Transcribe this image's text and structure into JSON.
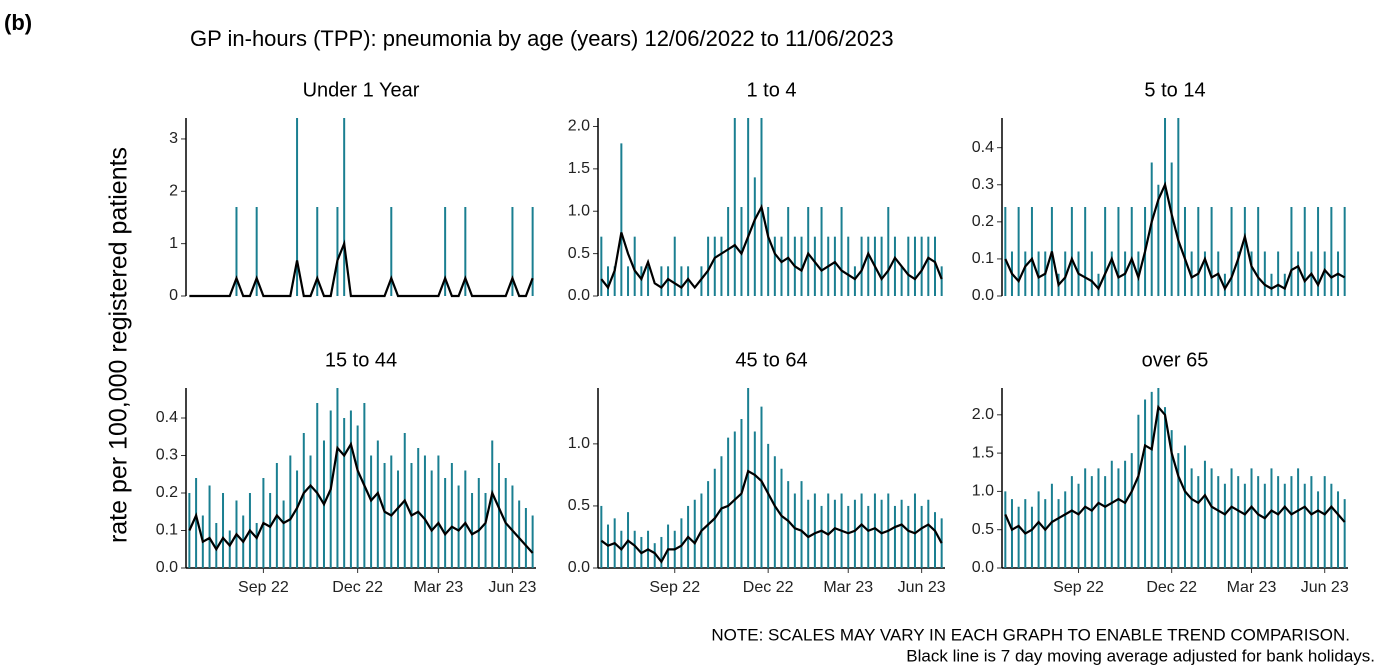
{
  "panel_label": "(b)",
  "title": "GP in-hours (TPP): pneumonia by age (years) 12/06/2022 to 11/06/2023",
  "ylabel": "rate per 100,000 registered patients",
  "notes": [
    "NOTE: SCALES MAY VARY IN EACH GRAPH TO ENABLE TREND COMPARISON.",
    "Black line is 7 day moving average adjusted for bank holidays."
  ],
  "chart_data": [
    {
      "type": "line",
      "title": "Under 1 Year",
      "ylim": [
        0,
        3.4
      ],
      "yticks": [
        0,
        1,
        2,
        3
      ],
      "series": [
        {
          "color": "#1a7f91",
          "values": [
            0,
            0,
            0,
            0,
            0,
            0,
            0,
            1.7,
            0,
            0,
            1.7,
            0,
            0,
            0,
            0,
            0,
            3.4,
            0,
            0,
            1.7,
            0,
            0,
            1.7,
            3.4,
            0,
            0,
            0,
            0,
            0,
            0,
            1.7,
            0,
            0,
            0,
            0,
            0,
            0,
            0,
            1.7,
            0,
            0,
            1.7,
            0,
            0,
            0,
            0,
            0,
            0,
            1.7,
            0,
            0,
            1.7
          ]
        },
        {
          "color": "#000000",
          "values": [
            0,
            0,
            0,
            0,
            0,
            0,
            0,
            0.34,
            0,
            0,
            0.34,
            0,
            0,
            0,
            0,
            0,
            0.68,
            0,
            0,
            0.34,
            0,
            0,
            0.68,
            1.0,
            0,
            0,
            0,
            0,
            0,
            0,
            0.34,
            0,
            0,
            0,
            0,
            0,
            0,
            0,
            0.34,
            0,
            0,
            0.34,
            0,
            0,
            0,
            0,
            0,
            0,
            0.34,
            0,
            0,
            0.34
          ]
        }
      ]
    },
    {
      "type": "line",
      "title": "1 to 4",
      "ylim": [
        0,
        2.1
      ],
      "yticks": [
        {
          "value": 0,
          "label": "0.0"
        },
        {
          "value": 0.5,
          "label": "0.5"
        },
        {
          "value": 1,
          "label": "1.0"
        },
        {
          "value": 1.5,
          "label": "1.5"
        },
        {
          "value": 2,
          "label": "2.0"
        }
      ],
      "series": [
        {
          "color": "#1a7f91",
          "values": [
            0.7,
            0.35,
            0.35,
            1.8,
            0.35,
            0.7,
            0.35,
            0.35,
            0,
            0.35,
            0.35,
            0.7,
            0.35,
            0.35,
            0,
            0.35,
            0.7,
            0.7,
            0.7,
            1.05,
            2.1,
            1.05,
            2.1,
            1.4,
            2.1,
            1.05,
            0.7,
            0.7,
            1.05,
            0.7,
            0.7,
            1.05,
            0.7,
            1.05,
            0.7,
            0.7,
            1.05,
            0.7,
            0.35,
            0.7,
            0.7,
            0.7,
            0.7,
            1.05,
            0.7,
            0.35,
            0.7,
            0.7,
            0.7,
            0.7,
            0.7,
            0.35
          ]
        },
        {
          "color": "#000000",
          "values": [
            0.2,
            0.1,
            0.3,
            0.75,
            0.5,
            0.3,
            0.2,
            0.4,
            0.15,
            0.1,
            0.2,
            0.15,
            0.1,
            0.2,
            0.1,
            0.2,
            0.3,
            0.45,
            0.5,
            0.55,
            0.6,
            0.5,
            0.7,
            0.9,
            1.05,
            0.7,
            0.5,
            0.4,
            0.45,
            0.35,
            0.3,
            0.5,
            0.4,
            0.3,
            0.35,
            0.4,
            0.3,
            0.25,
            0.2,
            0.3,
            0.5,
            0.35,
            0.2,
            0.3,
            0.45,
            0.35,
            0.25,
            0.2,
            0.3,
            0.45,
            0.4,
            0.2
          ]
        }
      ]
    },
    {
      "type": "line",
      "title": "5 to 14",
      "ylim": [
        0,
        0.48
      ],
      "yticks": [
        {
          "value": 0,
          "label": "0.0"
        },
        0.1,
        0.2,
        0.3,
        0.4
      ],
      "series": [
        {
          "color": "#1a7f91",
          "values": [
            0.24,
            0.12,
            0.24,
            0.12,
            0.24,
            0.12,
            0.12,
            0.24,
            0.06,
            0.12,
            0.24,
            0.12,
            0.24,
            0.12,
            0.06,
            0.24,
            0.12,
            0.24,
            0.12,
            0.24,
            0.12,
            0.24,
            0.36,
            0.3,
            0.48,
            0.36,
            0.48,
            0.24,
            0.12,
            0.24,
            0.12,
            0.24,
            0.12,
            0.06,
            0.24,
            0.12,
            0.24,
            0.12,
            0.24,
            0.12,
            0.06,
            0.12,
            0.06,
            0.24,
            0.12,
            0.24,
            0.12,
            0.24,
            0.12,
            0.24,
            0.12,
            0.24
          ]
        },
        {
          "color": "#000000",
          "values": [
            0.1,
            0.06,
            0.04,
            0.08,
            0.1,
            0.05,
            0.06,
            0.12,
            0.03,
            0.05,
            0.1,
            0.06,
            0.05,
            0.04,
            0.02,
            0.06,
            0.1,
            0.05,
            0.06,
            0.1,
            0.05,
            0.12,
            0.2,
            0.26,
            0.3,
            0.22,
            0.15,
            0.1,
            0.05,
            0.06,
            0.1,
            0.05,
            0.06,
            0.02,
            0.05,
            0.1,
            0.16,
            0.08,
            0.05,
            0.03,
            0.02,
            0.03,
            0.02,
            0.07,
            0.08,
            0.04,
            0.06,
            0.03,
            0.07,
            0.05,
            0.06,
            0.05
          ]
        }
      ]
    },
    {
      "type": "line",
      "title": "15 to 44",
      "ylim": [
        0,
        0.48
      ],
      "yticks": [
        {
          "value": 0,
          "label": "0.0"
        },
        0.1,
        0.2,
        0.3,
        0.4
      ],
      "categories": [
        null,
        null,
        null,
        null,
        null,
        null,
        null,
        null,
        null,
        null,
        null,
        "Sep 22",
        null,
        null,
        null,
        null,
        null,
        null,
        null,
        null,
        null,
        null,
        null,
        null,
        null,
        "Dec 22",
        null,
        null,
        null,
        null,
        null,
        null,
        null,
        null,
        null,
        null,
        null,
        "Mar 23",
        null,
        null,
        null,
        null,
        null,
        null,
        null,
        null,
        null,
        null,
        "Jun 23",
        null,
        null,
        null
      ],
      "series": [
        {
          "color": "#1a7f91",
          "values": [
            0.2,
            0.24,
            0.14,
            0.22,
            0.12,
            0.2,
            0.1,
            0.18,
            0.14,
            0.2,
            0.12,
            0.24,
            0.2,
            0.28,
            0.18,
            0.3,
            0.26,
            0.36,
            0.3,
            0.44,
            0.34,
            0.42,
            0.48,
            0.4,
            0.42,
            0.38,
            0.44,
            0.3,
            0.34,
            0.28,
            0.3,
            0.26,
            0.36,
            0.28,
            0.32,
            0.3,
            0.26,
            0.3,
            0.24,
            0.28,
            0.22,
            0.26,
            0.2,
            0.24,
            0.2,
            0.34,
            0.28,
            0.24,
            0.22,
            0.18,
            0.16,
            0.14
          ]
        },
        {
          "color": "#000000",
          "values": [
            0.1,
            0.14,
            0.07,
            0.08,
            0.05,
            0.08,
            0.06,
            0.09,
            0.07,
            0.1,
            0.08,
            0.12,
            0.11,
            0.14,
            0.12,
            0.13,
            0.16,
            0.2,
            0.22,
            0.2,
            0.17,
            0.21,
            0.32,
            0.3,
            0.33,
            0.26,
            0.22,
            0.18,
            0.2,
            0.15,
            0.14,
            0.16,
            0.18,
            0.14,
            0.15,
            0.13,
            0.1,
            0.12,
            0.09,
            0.11,
            0.1,
            0.12,
            0.09,
            0.1,
            0.12,
            0.2,
            0.16,
            0.12,
            0.1,
            0.08,
            0.06,
            0.04
          ]
        }
      ]
    },
    {
      "type": "line",
      "title": "45 to 64",
      "ylim": [
        0,
        1.45
      ],
      "yticks": [
        {
          "value": 0,
          "label": "0.0"
        },
        {
          "value": 0.5,
          "label": "0.5"
        },
        {
          "value": 1,
          "label": "1.0"
        }
      ],
      "categories": [
        null,
        null,
        null,
        null,
        null,
        null,
        null,
        null,
        null,
        null,
        null,
        "Sep 22",
        null,
        null,
        null,
        null,
        null,
        null,
        null,
        null,
        null,
        null,
        null,
        null,
        null,
        "Dec 22",
        null,
        null,
        null,
        null,
        null,
        null,
        null,
        null,
        null,
        null,
        null,
        "Mar 23",
        null,
        null,
        null,
        null,
        null,
        null,
        null,
        null,
        null,
        null,
        "Jun 23",
        null,
        null,
        null
      ],
      "series": [
        {
          "color": "#1a7f91",
          "values": [
            0.5,
            0.35,
            0.4,
            0.3,
            0.45,
            0.3,
            0.25,
            0.3,
            0.2,
            0.25,
            0.35,
            0.3,
            0.4,
            0.5,
            0.55,
            0.6,
            0.7,
            0.8,
            0.9,
            1.05,
            1.1,
            1.2,
            1.45,
            1.1,
            1.3,
            1.0,
            0.9,
            0.8,
            0.7,
            0.6,
            0.7,
            0.55,
            0.6,
            0.5,
            0.6,
            0.55,
            0.6,
            0.5,
            0.55,
            0.6,
            0.5,
            0.6,
            0.55,
            0.6,
            0.5,
            0.55,
            0.5,
            0.6,
            0.5,
            0.55,
            0.45,
            0.4
          ]
        },
        {
          "color": "#000000",
          "values": [
            0.22,
            0.18,
            0.2,
            0.15,
            0.22,
            0.18,
            0.12,
            0.15,
            0.12,
            0.05,
            0.15,
            0.15,
            0.18,
            0.25,
            0.2,
            0.3,
            0.35,
            0.4,
            0.48,
            0.5,
            0.55,
            0.6,
            0.78,
            0.75,
            0.7,
            0.6,
            0.5,
            0.42,
            0.38,
            0.32,
            0.3,
            0.25,
            0.28,
            0.3,
            0.27,
            0.32,
            0.3,
            0.28,
            0.3,
            0.35,
            0.3,
            0.32,
            0.28,
            0.3,
            0.33,
            0.35,
            0.3,
            0.28,
            0.32,
            0.35,
            0.3,
            0.2
          ]
        }
      ]
    },
    {
      "type": "line",
      "title": "over 65",
      "ylim": [
        0,
        2.35
      ],
      "yticks": [
        {
          "value": 0,
          "label": "0.0"
        },
        {
          "value": 0.5,
          "label": "0.5"
        },
        {
          "value": 1,
          "label": "1.0"
        },
        {
          "value": 1.5,
          "label": "1.5"
        },
        {
          "value": 2,
          "label": "2.0"
        }
      ],
      "categories": [
        null,
        null,
        null,
        null,
        null,
        null,
        null,
        null,
        null,
        null,
        null,
        "Sep 22",
        null,
        null,
        null,
        null,
        null,
        null,
        null,
        null,
        null,
        null,
        null,
        null,
        null,
        "Dec 22",
        null,
        null,
        null,
        null,
        null,
        null,
        null,
        null,
        null,
        null,
        null,
        "Mar 23",
        null,
        null,
        null,
        null,
        null,
        null,
        null,
        null,
        null,
        null,
        "Jun 23",
        null,
        null,
        null
      ],
      "series": [
        {
          "color": "#1a7f91",
          "values": [
            1.0,
            0.9,
            0.8,
            0.9,
            0.8,
            1.0,
            0.9,
            1.1,
            0.9,
            1.0,
            1.2,
            1.1,
            1.3,
            1.2,
            1.3,
            1.2,
            1.4,
            1.3,
            1.4,
            1.5,
            2.0,
            2.2,
            2.3,
            2.35,
            2.1,
            1.8,
            1.5,
            1.6,
            1.3,
            1.2,
            1.4,
            1.3,
            1.2,
            1.1,
            1.3,
            1.2,
            1.1,
            1.3,
            1.2,
            1.1,
            1.3,
            1.2,
            1.1,
            1.2,
            1.3,
            1.1,
            1.2,
            1.0,
            1.2,
            1.1,
            1.0,
            0.9
          ]
        },
        {
          "color": "#000000",
          "values": [
            0.7,
            0.5,
            0.55,
            0.45,
            0.5,
            0.6,
            0.5,
            0.6,
            0.65,
            0.7,
            0.75,
            0.7,
            0.8,
            0.75,
            0.85,
            0.8,
            0.85,
            0.9,
            0.85,
            1.0,
            1.2,
            1.6,
            1.55,
            2.1,
            2.0,
            1.5,
            1.2,
            1.0,
            0.9,
            0.85,
            0.95,
            0.8,
            0.75,
            0.7,
            0.8,
            0.75,
            0.7,
            0.8,
            0.7,
            0.65,
            0.75,
            0.7,
            0.8,
            0.7,
            0.75,
            0.8,
            0.7,
            0.75,
            0.7,
            0.8,
            0.7,
            0.6
          ]
        }
      ]
    }
  ]
}
